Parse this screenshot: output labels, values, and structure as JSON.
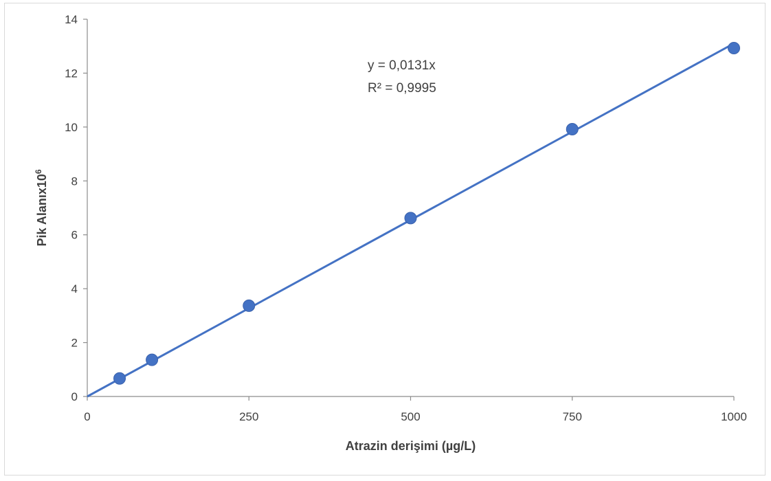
{
  "chart_data": {
    "type": "scatter",
    "title": "",
    "xlabel": "Atrazin derişimi (µg/L)",
    "ylabel_main": "Pik Alanıx10",
    "ylabel_sup": "6",
    "xlim": [
      0,
      1000
    ],
    "ylim": [
      0,
      14
    ],
    "x_ticks": [
      0,
      250,
      500,
      750,
      1000
    ],
    "y_ticks": [
      0,
      2,
      4,
      6,
      8,
      10,
      12,
      14
    ],
    "grid": false,
    "legend": "none",
    "series": [
      {
        "x": [
          50,
          100,
          250,
          500,
          750,
          1000
        ],
        "y": [
          0.67,
          1.36,
          3.37,
          6.62,
          9.92,
          12.93
        ],
        "color": "#4472c4"
      }
    ],
    "trendline": {
      "type": "linear",
      "slope": 0.0131,
      "intercept": 0,
      "color": "#4472c4"
    },
    "annotations": {
      "equation": "y = 0,0131x",
      "r_squared": "R² = 0,9995"
    }
  }
}
